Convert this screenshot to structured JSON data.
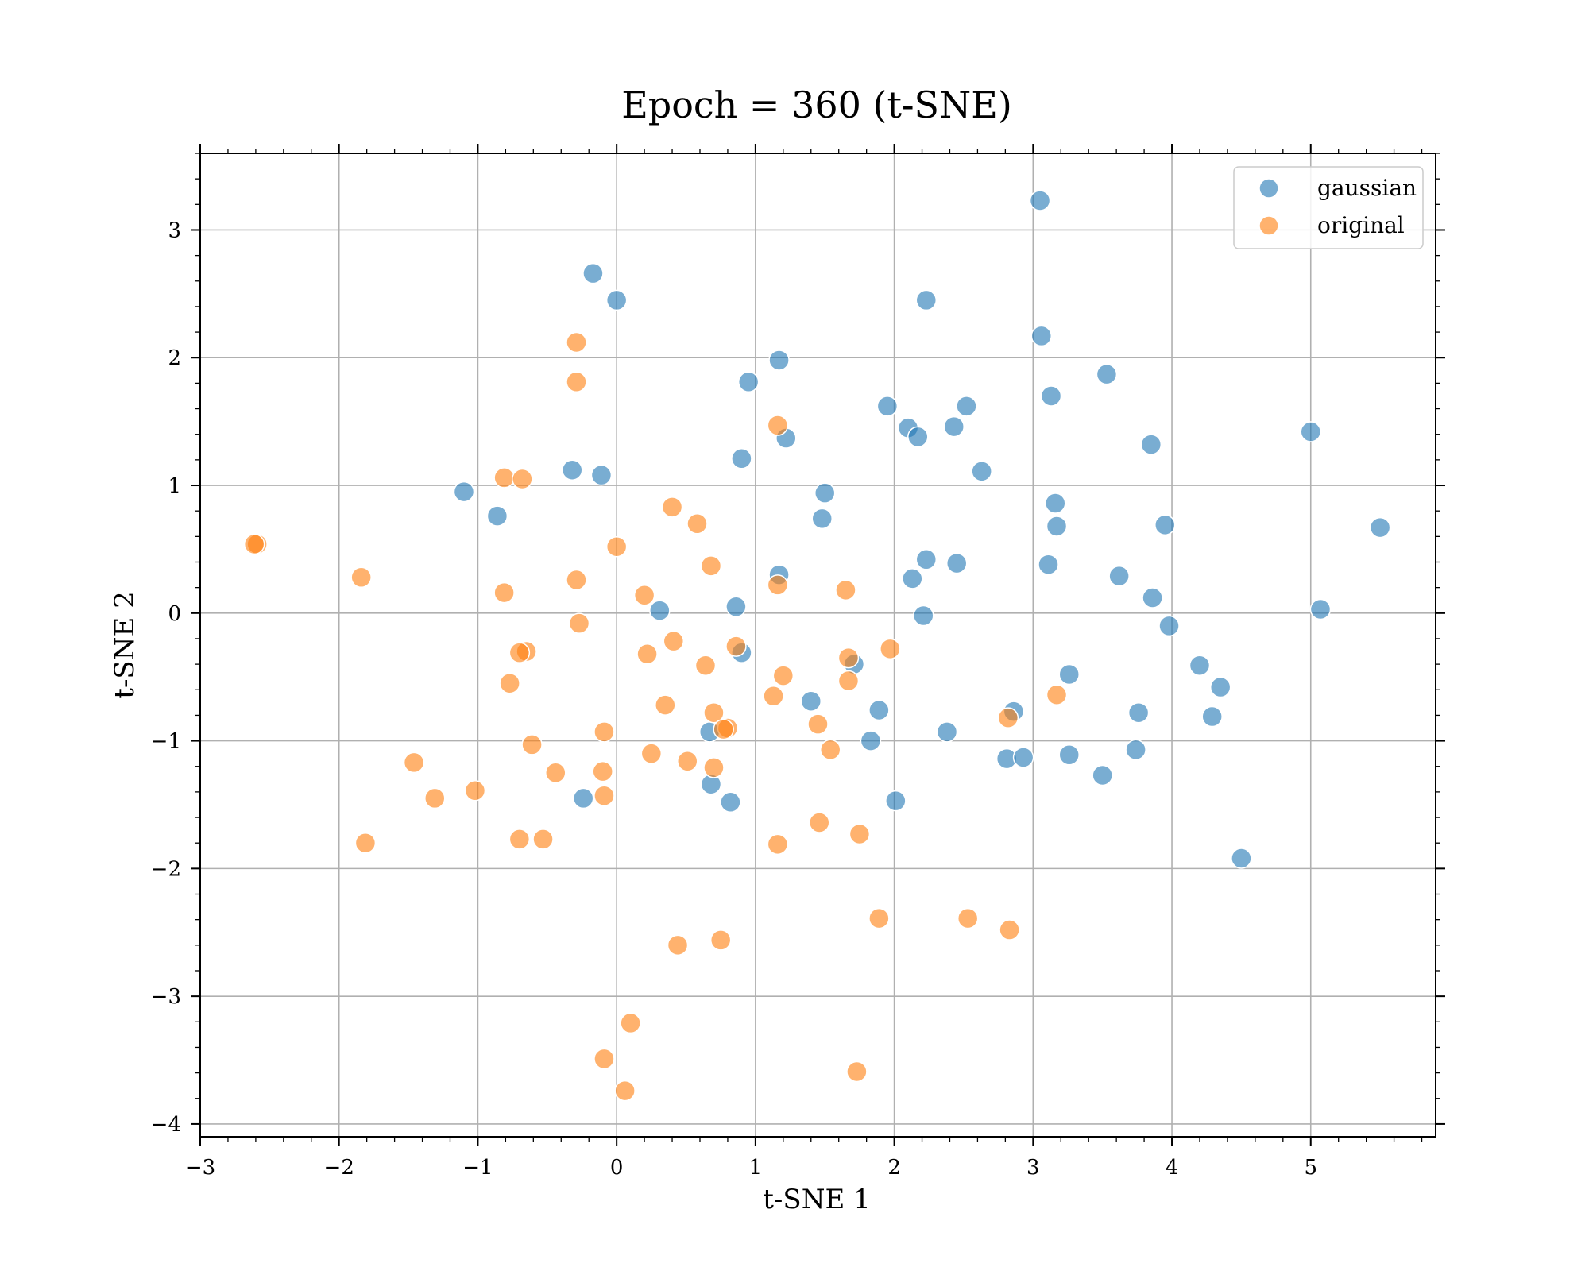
{
  "chart_data": {
    "type": "scatter",
    "title": "Epoch = 360 (t-SNE)",
    "xlabel": "t-SNE 1",
    "ylabel": "t-SNE 2",
    "xlim": [
      -3,
      5.9
    ],
    "ylim": [
      -4.1,
      3.6
    ],
    "xticks": [
      -3,
      -2,
      -1,
      0,
      1,
      2,
      3,
      4,
      5
    ],
    "yticks": [
      -4,
      -3,
      -2,
      -1,
      0,
      1,
      2,
      3
    ],
    "xtick_labels": [
      "−3",
      "−2",
      "−1",
      "0",
      "1",
      "2",
      "3",
      "4",
      "5"
    ],
    "ytick_labels": [
      "−4",
      "−3",
      "−2",
      "−1",
      "0",
      "1",
      "2",
      "3"
    ],
    "grid": true,
    "legend_position": "top-right",
    "series": [
      {
        "name": "gaussian",
        "color": "#1f77b4",
        "points": [
          [
            3.05,
            3.23
          ],
          [
            -0.17,
            2.66
          ],
          [
            0.0,
            2.45
          ],
          [
            2.23,
            2.45
          ],
          [
            3.06,
            2.17
          ],
          [
            1.17,
            1.98
          ],
          [
            0.95,
            1.81
          ],
          [
            3.53,
            1.87
          ],
          [
            3.13,
            1.7
          ],
          [
            1.95,
            1.62
          ],
          [
            2.52,
            1.62
          ],
          [
            2.1,
            1.45
          ],
          [
            2.43,
            1.46
          ],
          [
            2.17,
            1.38
          ],
          [
            1.22,
            1.37
          ],
          [
            5.0,
            1.42
          ],
          [
            3.85,
            1.32
          ],
          [
            0.9,
            1.21
          ],
          [
            -0.32,
            1.12
          ],
          [
            -0.11,
            1.08
          ],
          [
            2.63,
            1.11
          ],
          [
            -1.1,
            0.95
          ],
          [
            1.5,
            0.94
          ],
          [
            3.16,
            0.86
          ],
          [
            -0.86,
            0.76
          ],
          [
            1.48,
            0.74
          ],
          [
            3.17,
            0.68
          ],
          [
            3.95,
            0.69
          ],
          [
            5.5,
            0.67
          ],
          [
            2.23,
            0.42
          ],
          [
            2.45,
            0.39
          ],
          [
            3.11,
            0.38
          ],
          [
            1.17,
            0.3
          ],
          [
            2.13,
            0.27
          ],
          [
            3.62,
            0.29
          ],
          [
            3.86,
            0.12
          ],
          [
            0.31,
            0.02
          ],
          [
            0.86,
            0.05
          ],
          [
            5.07,
            0.03
          ],
          [
            2.21,
            -0.02
          ],
          [
            3.98,
            -0.1
          ],
          [
            0.9,
            -0.31
          ],
          [
            1.71,
            -0.4
          ],
          [
            4.2,
            -0.41
          ],
          [
            3.26,
            -0.48
          ],
          [
            4.35,
            -0.58
          ],
          [
            1.4,
            -0.69
          ],
          [
            2.86,
            -0.77
          ],
          [
            1.89,
            -0.76
          ],
          [
            3.76,
            -0.78
          ],
          [
            4.29,
            -0.81
          ],
          [
            0.67,
            -0.93
          ],
          [
            2.38,
            -0.93
          ],
          [
            1.83,
            -1.0
          ],
          [
            3.74,
            -1.07
          ],
          [
            3.26,
            -1.11
          ],
          [
            2.81,
            -1.14
          ],
          [
            2.93,
            -1.13
          ],
          [
            3.5,
            -1.27
          ],
          [
            0.68,
            -1.34
          ],
          [
            -0.24,
            -1.45
          ],
          [
            0.82,
            -1.48
          ],
          [
            2.01,
            -1.47
          ],
          [
            4.5,
            -1.92
          ]
        ]
      },
      {
        "name": "original",
        "color": "#ff7f0e",
        "points": [
          [
            -0.29,
            2.12
          ],
          [
            -0.29,
            1.81
          ],
          [
            1.16,
            1.47
          ],
          [
            -0.81,
            1.06
          ],
          [
            -0.68,
            1.05
          ],
          [
            0.4,
            0.83
          ],
          [
            0.58,
            0.7
          ],
          [
            -2.59,
            0.54
          ],
          [
            -2.61,
            0.54
          ],
          [
            0.0,
            0.52
          ],
          [
            0.68,
            0.37
          ],
          [
            -1.84,
            0.28
          ],
          [
            -0.29,
            0.26
          ],
          [
            1.16,
            0.22
          ],
          [
            1.65,
            0.18
          ],
          [
            -0.81,
            0.16
          ],
          [
            0.2,
            0.14
          ],
          [
            -0.27,
            -0.08
          ],
          [
            0.41,
            -0.22
          ],
          [
            0.86,
            -0.26
          ],
          [
            1.97,
            -0.28
          ],
          [
            -0.65,
            -0.3
          ],
          [
            -0.7,
            -0.31
          ],
          [
            0.22,
            -0.32
          ],
          [
            1.67,
            -0.35
          ],
          [
            0.64,
            -0.41
          ],
          [
            1.2,
            -0.49
          ],
          [
            1.67,
            -0.53
          ],
          [
            -0.77,
            -0.55
          ],
          [
            3.17,
            -0.64
          ],
          [
            1.13,
            -0.65
          ],
          [
            0.35,
            -0.72
          ],
          [
            0.7,
            -0.78
          ],
          [
            2.82,
            -0.82
          ],
          [
            1.45,
            -0.87
          ],
          [
            0.8,
            -0.9
          ],
          [
            0.77,
            -0.91
          ],
          [
            -0.09,
            -0.93
          ],
          [
            -0.61,
            -1.03
          ],
          [
            1.54,
            -1.07
          ],
          [
            0.25,
            -1.1
          ],
          [
            0.51,
            -1.16
          ],
          [
            -1.46,
            -1.17
          ],
          [
            0.7,
            -1.21
          ],
          [
            -0.1,
            -1.24
          ],
          [
            -0.44,
            -1.25
          ],
          [
            -1.02,
            -1.39
          ],
          [
            -1.31,
            -1.45
          ],
          [
            -0.09,
            -1.43
          ],
          [
            1.46,
            -1.64
          ],
          [
            1.75,
            -1.73
          ],
          [
            -0.7,
            -1.77
          ],
          [
            -0.53,
            -1.77
          ],
          [
            1.16,
            -1.81
          ],
          [
            -1.81,
            -1.8
          ],
          [
            1.89,
            -2.39
          ],
          [
            2.53,
            -2.39
          ],
          [
            2.83,
            -2.48
          ],
          [
            0.75,
            -2.56
          ],
          [
            0.44,
            -2.6
          ],
          [
            0.1,
            -3.21
          ],
          [
            -0.09,
            -3.49
          ],
          [
            1.73,
            -3.59
          ],
          [
            0.06,
            -3.74
          ]
        ]
      }
    ]
  }
}
